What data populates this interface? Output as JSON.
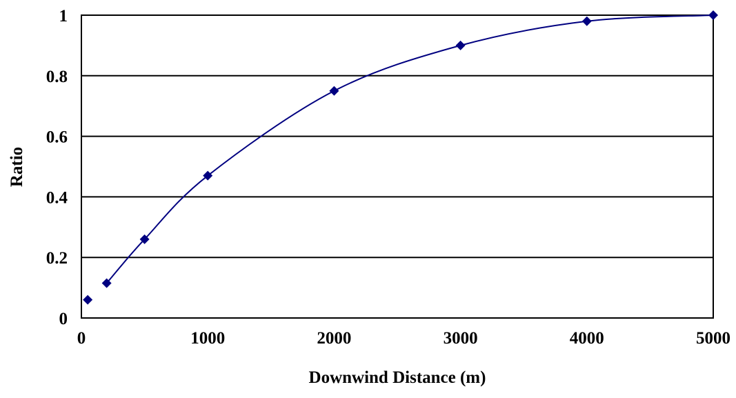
{
  "chart_data": {
    "type": "scatter",
    "title": "",
    "xlabel": "Downwind Distance (m)",
    "ylabel": "Ratio",
    "xlim": [
      0,
      5000
    ],
    "ylim": [
      0,
      1
    ],
    "x_ticks": [
      0,
      1000,
      2000,
      3000,
      4000,
      5000
    ],
    "x_tick_labels": [
      "0",
      "1000",
      "2000",
      "3000",
      "4000",
      "5000"
    ],
    "y_ticks": [
      0,
      0.2,
      0.4,
      0.6,
      0.8,
      1
    ],
    "y_tick_labels": [
      "0",
      "0.2",
      "0.4",
      "0.6",
      "0.8",
      "1"
    ],
    "grid": "horizontal",
    "legend": "none",
    "series": [
      {
        "marker": "diamond",
        "smoothed_line": true,
        "line_starts_at_index": 1,
        "x": [
          50,
          200,
          500,
          1000,
          2000,
          3000,
          4000,
          5000
        ],
        "y": [
          0.06,
          0.115,
          0.26,
          0.47,
          0.75,
          0.9,
          0.98,
          1.0
        ]
      }
    ]
  },
  "colors": {
    "series": "#000080",
    "grid": "#000000",
    "axis": "#000000",
    "background": "#ffffff"
  }
}
